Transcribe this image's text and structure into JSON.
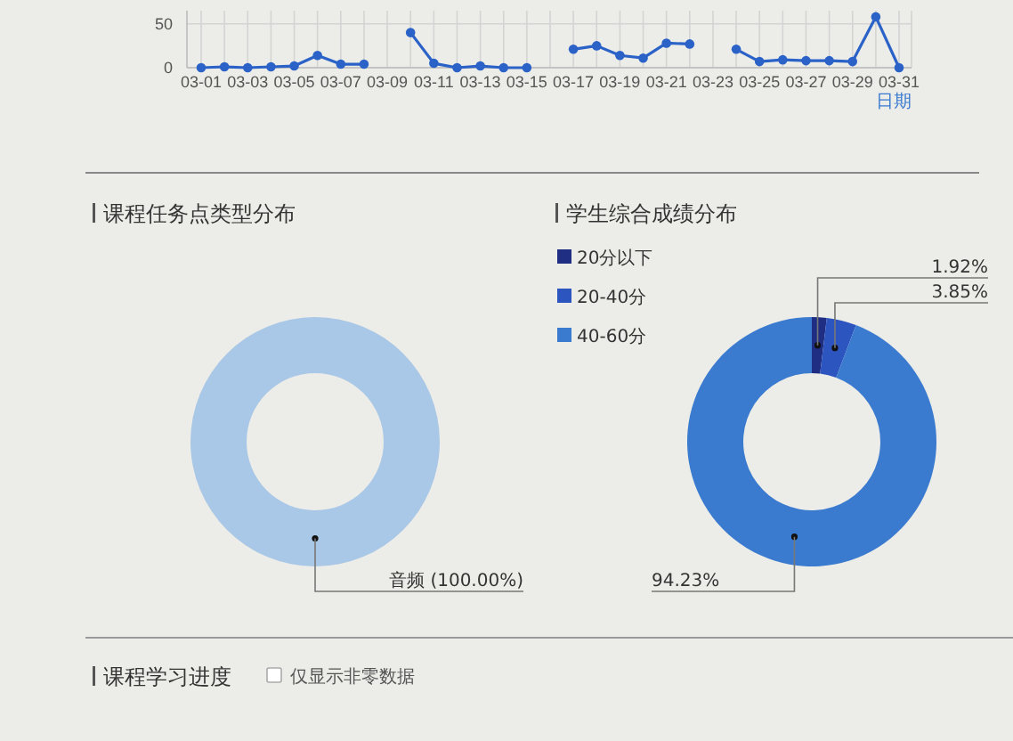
{
  "chart_data": [
    {
      "type": "line",
      "categories": [
        "03-01",
        null,
        "03-03",
        null,
        "03-05",
        null,
        "03-07",
        null,
        "03-09",
        null,
        "03-11",
        null,
        "03-13",
        null,
        "03-15",
        null,
        "03-17",
        null,
        "03-19",
        null,
        "03-21",
        null,
        "03-23",
        null,
        "03-25",
        null,
        "03-27",
        null,
        "03-29",
        null,
        "03-31"
      ],
      "series": [
        {
          "color": "#2a62c8",
          "values": [
            0,
            1,
            0,
            1,
            2,
            14,
            4,
            4,
            null,
            40,
            5,
            0,
            2,
            0,
            0,
            null,
            21,
            25,
            14,
            11,
            28,
            27,
            null,
            21,
            7,
            9,
            8,
            8,
            7,
            58,
            0
          ]
        }
      ],
      "xlabel": "日期",
      "ylim": [
        0,
        65
      ],
      "yticks": [
        0,
        50
      ],
      "grid": true,
      "marker": "circle"
    },
    {
      "type": "donut",
      "title": "课程任务点类型分布",
      "categories": [
        "音频"
      ],
      "values": [
        100
      ],
      "colors": [
        "#a9c7e6"
      ],
      "value_labels": [
        "(100.00%)"
      ]
    },
    {
      "type": "donut",
      "title": "学生综合成绩分布",
      "categories": [
        "20分以下",
        "20-40分",
        "40-60分"
      ],
      "values": [
        1.92,
        3.85,
        94.23
      ],
      "colors": [
        "#1f2d82",
        "#2d55c0",
        "#3a7bd0"
      ],
      "value_labels": [
        "1.92%",
        "3.85%",
        "94.23%"
      ],
      "legend": "top left"
    },
    {
      "type": "other",
      "title": "课程学习进度",
      "annotations": [
        "仅显示非零数据"
      ]
    }
  ]
}
